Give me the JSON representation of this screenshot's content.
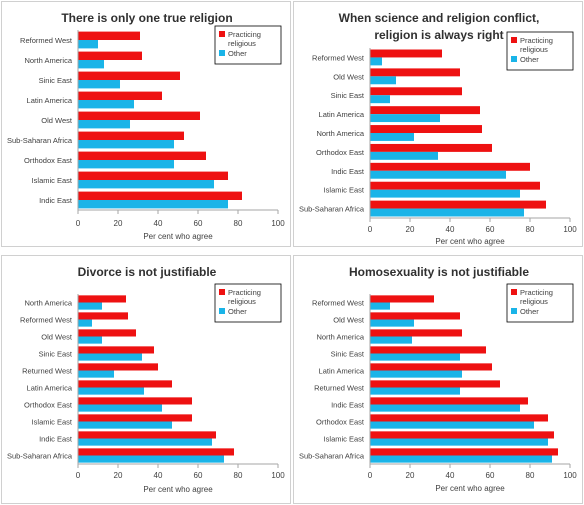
{
  "colors": {
    "practicing": "#ee1111",
    "other": "#1ab4e8",
    "axis": "#a6a6a6",
    "text": "#404040"
  },
  "chart_data": [
    {
      "type": "bar",
      "orientation": "horizontal",
      "title_lines": [
        "There is only one true religion"
      ],
      "xlabel": "Per cent who agree",
      "xlim": [
        0,
        100
      ],
      "xticks": [
        "0",
        "20",
        "40",
        "60",
        "80",
        "100"
      ],
      "legend_lines": [
        [
          "Practicing",
          "religious"
        ],
        [
          "Other"
        ]
      ],
      "legend_position": "top-right",
      "categories": [
        "Reformed West",
        "North America",
        "Sinic East",
        "Latin America",
        "Old West",
        "Sub-Saharan Africa",
        "Orthodox East",
        "Islamic East",
        "Indic East"
      ],
      "series": [
        {
          "name": "Practicing religious",
          "values": [
            31,
            32,
            51,
            42,
            61,
            53,
            64,
            75,
            82
          ]
        },
        {
          "name": "Other",
          "values": [
            10,
            13,
            21,
            28,
            26,
            48,
            48,
            68,
            75
          ]
        }
      ]
    },
    {
      "type": "bar",
      "orientation": "horizontal",
      "title_lines": [
        "When science and  religion conflict,",
        "religion is always right"
      ],
      "xlabel": "Per cent who agree",
      "xlim": [
        0,
        100
      ],
      "xticks": [
        "0",
        "20",
        "40",
        "60",
        "80",
        "100"
      ],
      "legend_lines": [
        [
          "Practicing",
          "religious"
        ],
        [
          "Other"
        ]
      ],
      "legend_position": "top-right",
      "categories": [
        "Reformed West",
        "Old West",
        "Sinic East",
        "Latin America",
        "North America",
        "Orthodox East",
        "Indic East",
        "Islamic East",
        "Sub-Saharan Africa"
      ],
      "series": [
        {
          "name": "Practicing religious",
          "values": [
            36,
            45,
            46,
            55,
            56,
            61,
            80,
            85,
            88
          ]
        },
        {
          "name": "Other",
          "values": [
            6,
            13,
            10,
            35,
            22,
            34,
            68,
            75,
            77
          ]
        }
      ]
    },
    {
      "type": "bar",
      "orientation": "horizontal",
      "title_lines": [
        "Divorce is not justifiable"
      ],
      "xlabel": "Per cent who agree",
      "xlim": [
        0,
        100
      ],
      "xticks": [
        "0",
        "20",
        "40",
        "60",
        "80",
        "100"
      ],
      "legend_lines": [
        [
          "Practicing",
          "religious"
        ],
        [
          "Other"
        ]
      ],
      "legend_position": "top-right",
      "categories": [
        "North America",
        "Reformed West",
        "Old West",
        "Sinic East",
        "Returned West",
        "Latin America",
        "Orthodox East",
        "Islamic East",
        "Indic East",
        "Sub-Saharan Africa"
      ],
      "series": [
        {
          "name": "Practicing religious",
          "values": [
            24,
            25,
            29,
            38,
            40,
            47,
            57,
            57,
            69,
            78
          ]
        },
        {
          "name": "Other",
          "values": [
            12,
            7,
            12,
            32,
            18,
            33,
            42,
            47,
            67,
            73
          ]
        }
      ]
    },
    {
      "type": "bar",
      "orientation": "horizontal",
      "title_lines": [
        "Homosexuality is not justifiable"
      ],
      "xlabel": "Per cent who agree",
      "xlim": [
        0,
        100
      ],
      "xticks": [
        "0",
        "20",
        "40",
        "60",
        "80",
        "100"
      ],
      "legend_lines": [
        [
          "Practicing",
          "religious"
        ],
        [
          "Other"
        ]
      ],
      "legend_position": "top-right",
      "categories": [
        "Reformed West",
        "Old West",
        "North America",
        "Sinic East",
        "Latin America",
        "Returned West",
        "Indic East",
        "Orthodox East",
        "Islamic East",
        "Sub-Saharan Africa"
      ],
      "series": [
        {
          "name": "Practicing religious",
          "values": [
            32,
            45,
            46,
            58,
            61,
            65,
            79,
            89,
            92,
            94
          ]
        },
        {
          "name": "Other",
          "values": [
            10,
            22,
            21,
            45,
            46,
            45,
            75,
            82,
            89,
            91
          ]
        }
      ]
    }
  ]
}
